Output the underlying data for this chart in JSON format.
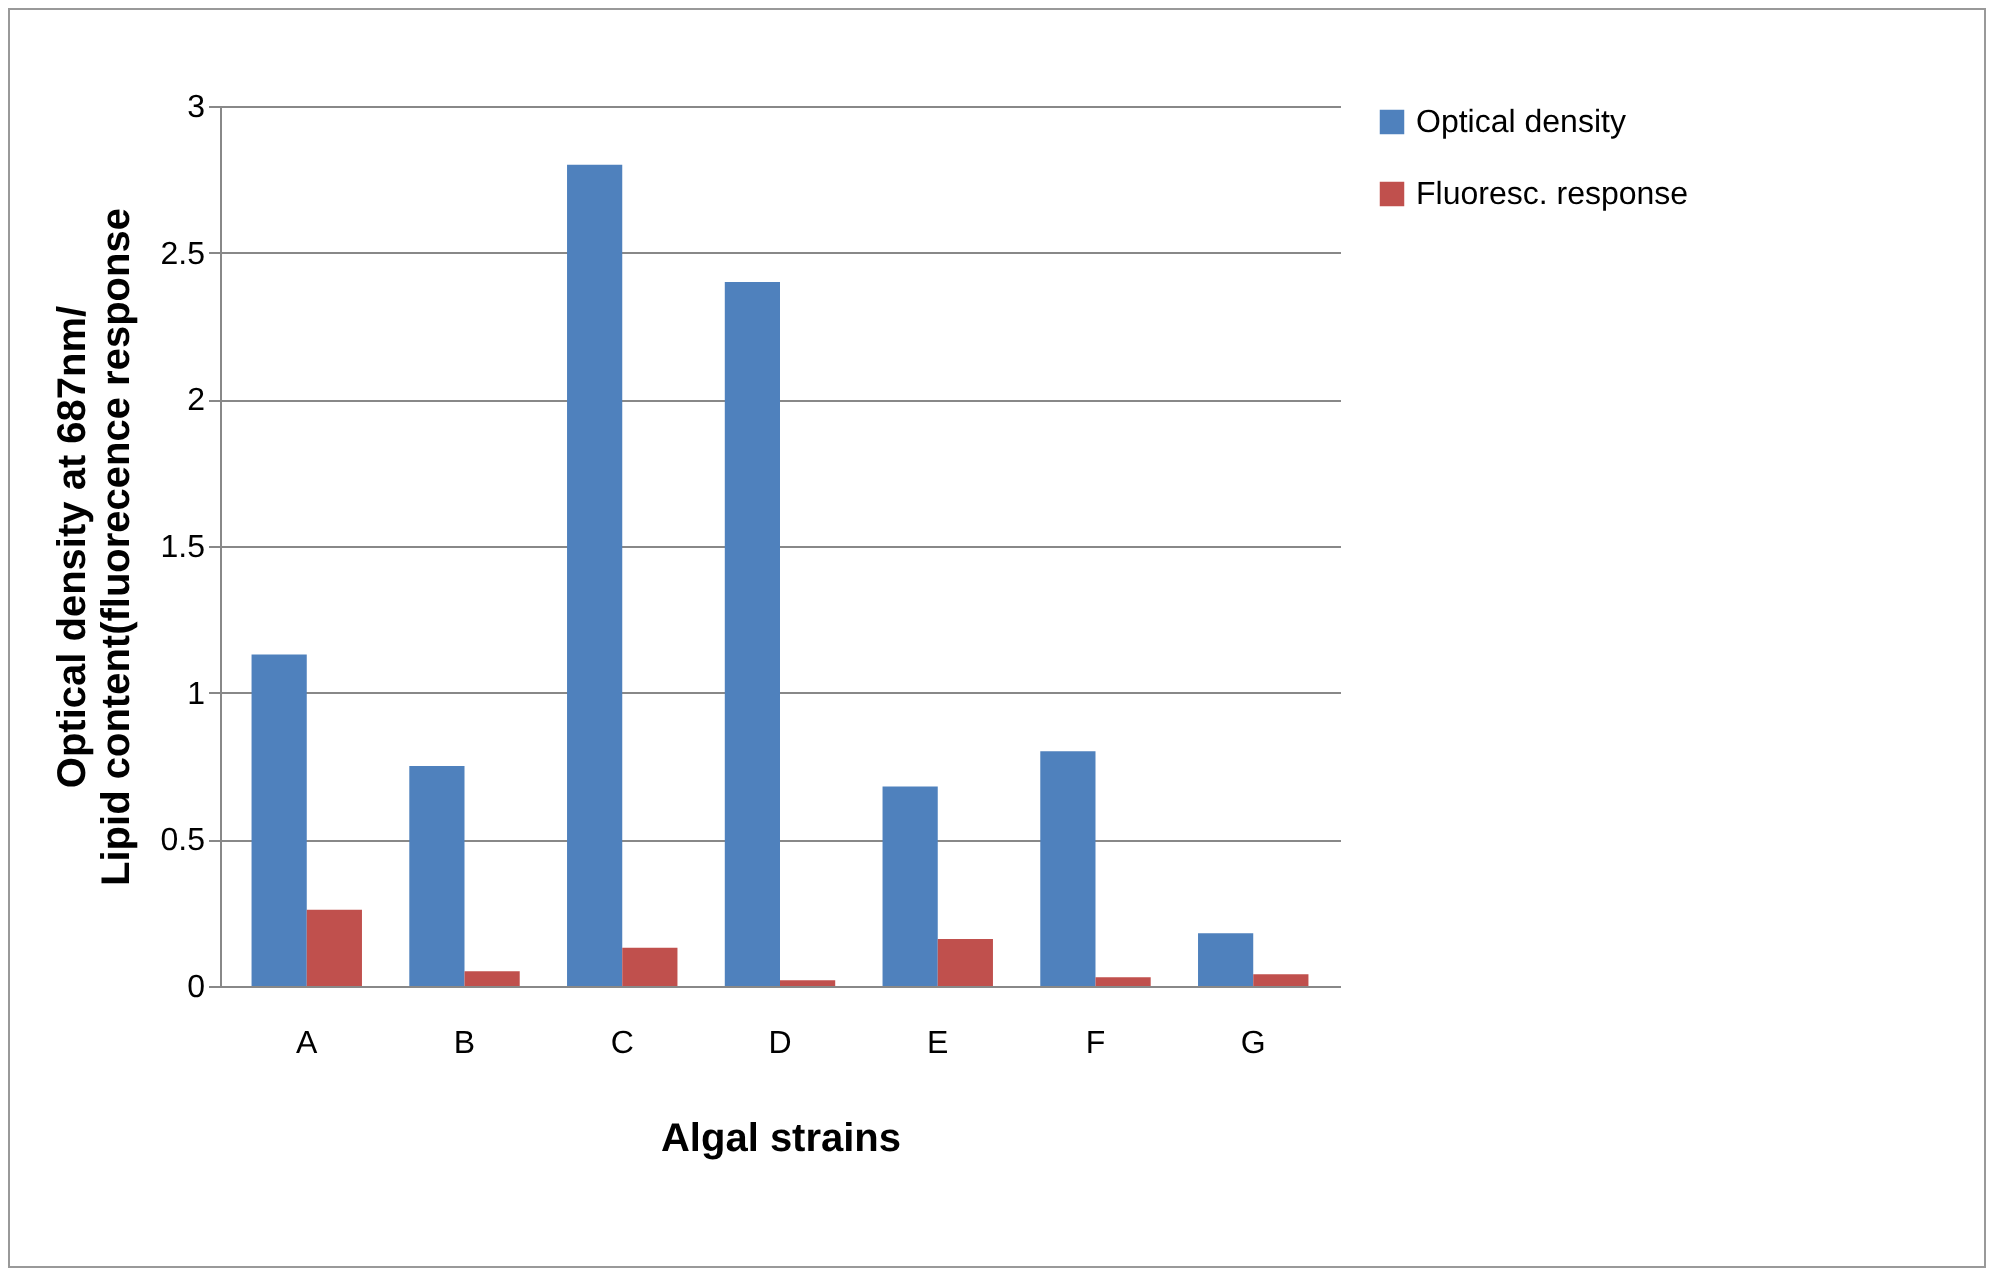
{
  "chart_data": {
    "type": "bar",
    "xlabel": "Algal strains",
    "ylabel": "Optical density at 687nm/\nLipid content(fluorecence response",
    "categories": [
      "A",
      "B",
      "C",
      "D",
      "E",
      "F",
      "G"
    ],
    "series": [
      {
        "name": "Optical density",
        "color": "#4f81bd",
        "values": [
          1.13,
          0.75,
          2.8,
          2.4,
          0.68,
          0.8,
          0.18
        ]
      },
      {
        "name": "Fluoresc. response",
        "color": "#c0504d",
        "values": [
          0.26,
          0.05,
          0.13,
          0.02,
          0.16,
          0.03,
          0.04
        ]
      }
    ],
    "ylim": [
      0,
      3
    ],
    "yticks": [
      0,
      0.5,
      1,
      1.5,
      2,
      2.5,
      3
    ],
    "grid": "y",
    "legend": "right"
  }
}
